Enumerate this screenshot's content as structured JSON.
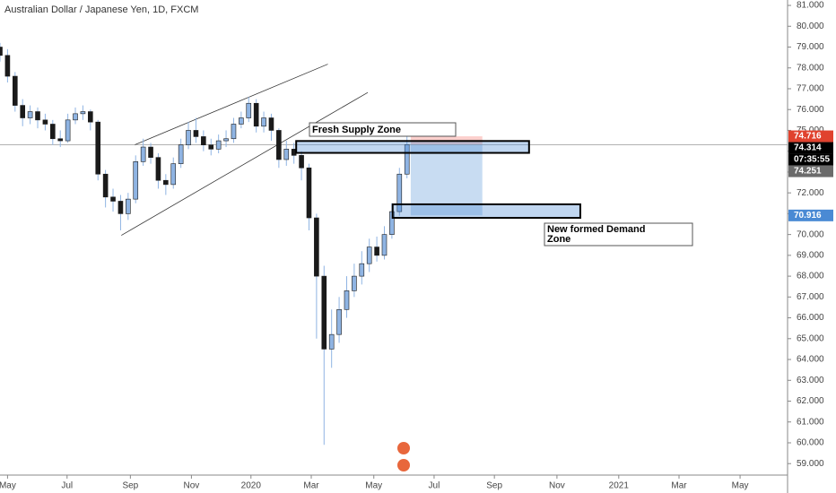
{
  "chart_data": {
    "type": "candlestick",
    "title": "Australian Dollar / Japanese Yen, 1D, FXCM",
    "open": [
      79.0,
      78.6,
      77.6,
      76.2,
      75.6,
      75.9,
      75.5,
      75.3,
      74.6,
      74.5,
      75.5,
      75.8,
      75.9,
      75.4,
      72.9,
      71.8,
      71.6,
      71.0,
      71.7,
      73.5,
      74.2,
      73.7,
      72.6,
      72.4,
      73.4,
      74.3,
      75.0,
      74.7,
      74.3,
      74.1,
      74.5,
      74.6,
      75.3,
      75.6,
      76.3,
      75.2,
      75.6,
      75.0,
      73.6,
      74.1,
      73.8,
      73.2,
      70.8,
      68.0,
      64.5,
      65.2,
      66.4,
      67.3,
      68.0,
      68.6,
      69.4,
      69.0,
      70.0,
      71.1,
      72.9
    ],
    "high": [
      79.2,
      78.9,
      77.8,
      76.5,
      76.2,
      76.1,
      75.8,
      75.5,
      75.0,
      75.8,
      76.1,
      76.2,
      76.0,
      75.5,
      73.1,
      72.2,
      71.9,
      72.0,
      73.8,
      74.6,
      74.4,
      73.9,
      72.9,
      73.7,
      74.6,
      75.4,
      75.6,
      75.0,
      74.6,
      74.8,
      75.0,
      75.6,
      75.9,
      76.6,
      76.5,
      75.9,
      75.8,
      75.1,
      74.5,
      74.4,
      74.0,
      73.4,
      71.0,
      68.5,
      66.4,
      67.0,
      68.0,
      68.6,
      69.2,
      69.8,
      69.9,
      70.4,
      71.5,
      73.2,
      74.7
    ],
    "low": [
      78.3,
      77.3,
      75.9,
      75.2,
      75.3,
      75.1,
      75.0,
      74.3,
      74.2,
      74.4,
      75.3,
      75.5,
      75.0,
      72.6,
      71.3,
      71.1,
      70.2,
      70.7,
      71.5,
      73.3,
      73.4,
      72.2,
      71.9,
      72.2,
      73.2,
      74.1,
      74.4,
      74.0,
      73.8,
      73.9,
      74.2,
      74.4,
      75.1,
      75.4,
      74.9,
      74.9,
      74.5,
      73.2,
      73.3,
      73.4,
      72.6,
      70.2,
      65.0,
      59.9,
      63.6,
      64.8,
      66.0,
      67.0,
      67.6,
      68.2,
      68.7,
      68.8,
      69.8,
      70.9,
      72.7
    ],
    "close": [
      78.6,
      77.6,
      76.2,
      75.6,
      75.9,
      75.5,
      75.3,
      74.6,
      74.5,
      75.5,
      75.8,
      75.9,
      75.4,
      72.9,
      71.8,
      71.6,
      71.0,
      71.7,
      73.5,
      74.2,
      73.7,
      72.6,
      72.4,
      73.4,
      74.3,
      75.0,
      74.7,
      74.3,
      74.1,
      74.5,
      74.6,
      75.3,
      75.6,
      76.3,
      75.2,
      75.6,
      75.0,
      73.6,
      74.1,
      73.8,
      73.2,
      70.8,
      68.0,
      64.5,
      65.2,
      66.4,
      67.3,
      68.0,
      68.6,
      69.4,
      69.0,
      70.0,
      71.1,
      72.9,
      74.314
    ],
    "up_color": "#8fb4e3",
    "down_color": "#1a1a1a",
    "xlim": [
      0,
      104.5
    ],
    "ylim": [
      58.45,
      81.26
    ],
    "xticks": [
      {
        "value": 1,
        "label": "May"
      },
      {
        "value": 8.9,
        "label": "Jul"
      },
      {
        "value": 17.3,
        "label": "Sep"
      },
      {
        "value": 25.4,
        "label": "Nov"
      },
      {
        "value": 33.3,
        "label": "2020"
      },
      {
        "value": 41.3,
        "label": "Mar"
      },
      {
        "value": 49.6,
        "label": "May"
      },
      {
        "value": 57.6,
        "label": "Jul"
      },
      {
        "value": 65.6,
        "label": "Sep"
      },
      {
        "value": 73.9,
        "label": "Nov"
      },
      {
        "value": 82.1,
        "label": "2021"
      },
      {
        "value": 90.1,
        "label": "Mar"
      },
      {
        "value": 98.2,
        "label": "May"
      }
    ],
    "yticks": [
      {
        "value": 59,
        "label": "59.000"
      },
      {
        "value": 60,
        "label": "60.000"
      },
      {
        "value": 61,
        "label": "61.000"
      },
      {
        "value": 62,
        "label": "62.000"
      },
      {
        "value": 63,
        "label": "63.000"
      },
      {
        "value": 64,
        "label": "64.000"
      },
      {
        "value": 65,
        "label": "65.000"
      },
      {
        "value": 66,
        "label": "66.000"
      },
      {
        "value": 67,
        "label": "67.000"
      },
      {
        "value": 68,
        "label": "68.000"
      },
      {
        "value": 69,
        "label": "69.000"
      },
      {
        "value": 70,
        "label": "70.000"
      },
      {
        "value": 71,
        "label": "71.000"
      },
      {
        "value": 72,
        "label": "72.000"
      },
      {
        "value": 73,
        "label": "73.000"
      },
      {
        "value": 74,
        "label": "74.000"
      },
      {
        "value": 75,
        "label": "75.000"
      },
      {
        "value": 76,
        "label": "76.000"
      },
      {
        "value": 77,
        "label": "77.000"
      },
      {
        "value": 78,
        "label": "78.000"
      },
      {
        "value": 79,
        "label": "79.000"
      },
      {
        "value": 80,
        "label": "80.000"
      },
      {
        "value": 81,
        "label": "81.000"
      }
    ],
    "grid": false,
    "price_labels": [
      {
        "value": 74.716,
        "color": "#e0422e"
      },
      {
        "value": 74.314,
        "color": "#000000"
      },
      {
        "countdown": "07:35:55",
        "color": "#000000"
      },
      {
        "value": 74.251,
        "color": "#6b6b6b"
      },
      {
        "value": 70.916,
        "color": "#4a8ad4"
      }
    ],
    "position": {
      "x_start": 54.5,
      "x_end": 64,
      "entry": 74.314,
      "stop": 74.716,
      "target": 70.916
    },
    "trend_lines": [
      {
        "x": [
          16.1,
          48.8
        ],
        "y": [
          69.96,
          76.82
        ]
      },
      {
        "x": [
          17.9,
          43.5
        ],
        "y": [
          74.31,
          78.18
        ]
      }
    ],
    "zones": [
      {
        "label": "Fresh Supply Zone",
        "x": [
          39.3,
          70.2
        ],
        "y": [
          74.49,
          73.92
        ]
      },
      {
        "label": "New formed Demand Zone",
        "x": [
          52.1,
          77
        ],
        "y": [
          71.45,
          70.8
        ]
      }
    ]
  }
}
